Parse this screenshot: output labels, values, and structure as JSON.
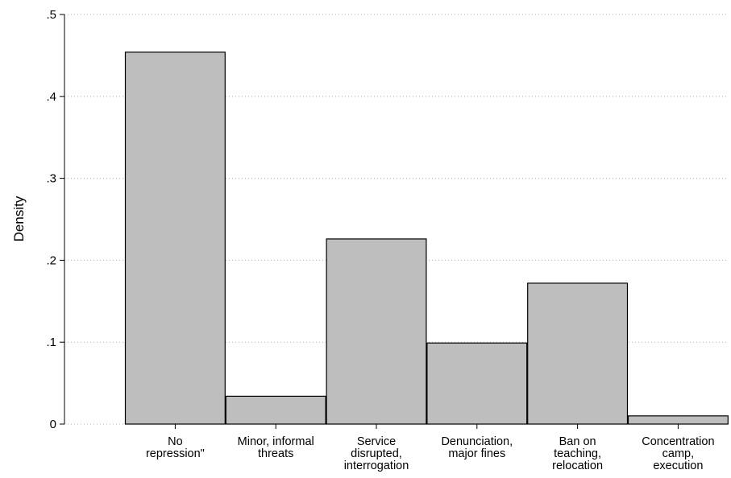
{
  "chart_data": {
    "type": "bar",
    "title": "",
    "xlabel": "",
    "ylabel": "Density",
    "ylim": [
      0,
      0.5
    ],
    "yticks": [
      {
        "value": 0,
        "label": "0"
      },
      {
        "value": 0.1,
        "label": ".1"
      },
      {
        "value": 0.2,
        "label": ".2"
      },
      {
        "value": 0.3,
        "label": ".3"
      },
      {
        "value": 0.4,
        "label": ".4"
      },
      {
        "value": 0.5,
        "label": ".5"
      }
    ],
    "categories": [
      [
        "No",
        "repression\""
      ],
      [
        "Minor, informal",
        "threats"
      ],
      [
        "Service",
        "disrupted,",
        "interrogation"
      ],
      [
        "Denunciation,",
        "major fines"
      ],
      [
        "Ban on",
        "teaching,",
        "relocation"
      ],
      [
        "Concentration",
        "camp,",
        "execution"
      ]
    ],
    "values": [
      0.454,
      0.034,
      0.226,
      0.099,
      0.172,
      0.01
    ],
    "grid": true,
    "bar_color": "#bebebe",
    "edge_color": "#000000"
  }
}
